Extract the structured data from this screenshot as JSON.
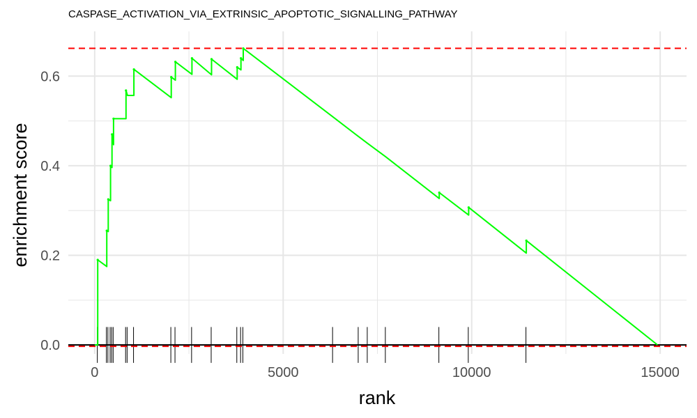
{
  "chart_data": {
    "type": "line",
    "title": "CASPASE_ACTIVATION_VIA_EXTRINSIC_APOPTOTIC_SIGNALLING_PATHWAY",
    "xlabel": "rank",
    "ylabel": "enrichment score",
    "xlim": [
      -700,
      15700
    ],
    "ylim": [
      -0.02,
      0.7
    ],
    "x_ticks": [
      0,
      5000,
      10000,
      15000
    ],
    "x_tick_labels": [
      "0",
      "5000",
      "10000",
      "15000"
    ],
    "y_ticks": [
      0.0,
      0.2,
      0.4,
      0.6
    ],
    "y_tick_labels": [
      "0.0",
      "0.2",
      "0.4",
      "0.6"
    ],
    "grid": true,
    "series": [
      {
        "x": [
          0,
          80,
          80,
          320,
          320,
          360,
          360,
          420,
          420,
          460,
          460,
          500,
          500,
          830,
          830,
          870,
          870,
          1040,
          1040,
          1060,
          1060,
          2030,
          2030,
          2140,
          2140,
          2580,
          2580,
          3100,
          3100,
          3780,
          3780,
          3880,
          3880,
          3940,
          3940,
          6320,
          6320,
          7000,
          7000,
          7240,
          7240,
          7720,
          7720,
          9140,
          9140,
          9920,
          9920,
          11450,
          11450,
          14930
        ],
        "y": [
          0.0,
          0.0,
          0.19,
          0.175,
          0.255,
          0.253,
          0.325,
          0.322,
          0.4,
          0.396,
          0.47,
          0.447,
          0.505,
          0.505,
          0.568,
          0.557,
          0.557,
          0.557,
          0.615,
          0.614,
          0.614,
          0.552,
          0.598,
          0.591,
          0.632,
          0.604,
          0.64,
          0.603,
          0.638,
          0.593,
          0.62,
          0.614,
          0.64,
          0.635,
          0.662,
          0.509,
          0.509,
          0.465,
          0.465,
          0.45,
          0.45,
          0.42,
          0.42,
          0.327,
          0.34,
          0.29,
          0.307,
          0.205,
          0.233,
          0.0
        ]
      }
    ],
    "hit_ranks": [
      70,
      310,
      350,
      410,
      450,
      490,
      820,
      860,
      1030,
      2020,
      2130,
      2570,
      3090,
      3770,
      3870,
      3930,
      6310,
      6990,
      7230,
      7710,
      9130,
      9910,
      11440
    ],
    "max_es": 0.662,
    "min_es": -0.003,
    "colors": {
      "curve": "#00ff00",
      "threshold": "#ff0000",
      "grid": "#e6e6e6",
      "ticks": "#000000",
      "zero_line": "#000000"
    }
  }
}
